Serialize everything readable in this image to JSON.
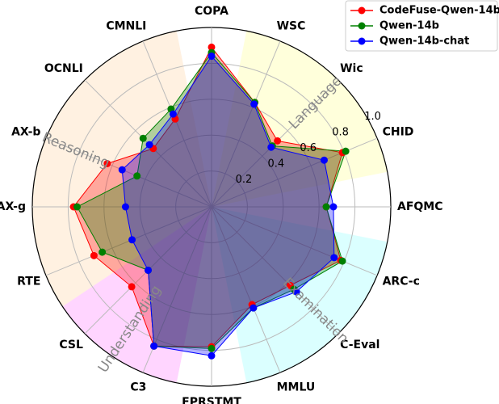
{
  "chart_data": {
    "type": "radar",
    "categories": [
      "COPA",
      "WSC",
      "Wic",
      "CHID",
      "AFQMC",
      "ARC-c",
      "C-Eval",
      "MMLU",
      "EPRSTMT",
      "C3",
      "CSL",
      "RTE",
      "AX-g",
      "AX-b",
      "OCNLI",
      "CMNLI"
    ],
    "series": [
      {
        "name": "CodeFuse-Qwen-14b",
        "color": "#ff0000",
        "values": [
          0.89,
          0.63,
          0.52,
          0.79,
          0.64,
          0.78,
          0.62,
          0.59,
          0.78,
          0.84,
          0.63,
          0.71,
          0.77,
          0.63,
          0.46,
          0.53
        ]
      },
      {
        "name": "Qwen-14b",
        "color": "#008000",
        "values": [
          0.86,
          0.63,
          0.48,
          0.81,
          0.64,
          0.79,
          0.65,
          0.61,
          0.79,
          0.84,
          0.5,
          0.66,
          0.75,
          0.45,
          0.54,
          0.59
        ]
      },
      {
        "name": "Qwen-14b-chat",
        "color": "#0000ff",
        "values": [
          0.84,
          0.62,
          0.47,
          0.68,
          0.68,
          0.74,
          0.67,
          0.61,
          0.83,
          0.84,
          0.5,
          0.48,
          0.48,
          0.54,
          0.49,
          0.56
        ]
      }
    ],
    "rlim": [
      0,
      1
    ],
    "rticks": [
      0.2,
      0.4,
      0.6,
      0.8,
      {
        "value": 1,
        "label": "1.0"
      }
    ],
    "grid": true,
    "legend": "upper right",
    "annotations": [
      "Reasoning",
      "Language",
      "Examination",
      "Understanding"
    ]
  }
}
